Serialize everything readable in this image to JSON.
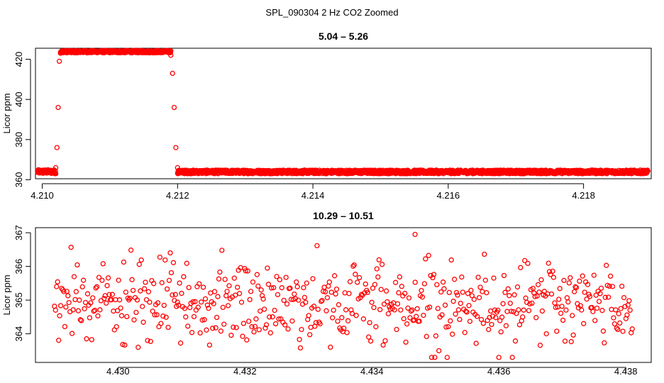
{
  "figure_title": "SPL_090304  2 Hz CO2 Zoomed",
  "chart_data": [
    {
      "type": "scatter",
      "title": "5.04 – 5.26",
      "xlabel": "",
      "ylabel": "Licor ppm",
      "xlim": [
        4.2099,
        4.219
      ],
      "ylim": [
        360.5,
        425.5
      ],
      "xticks": [
        4.21,
        4.212,
        4.214,
        4.216,
        4.218
      ],
      "xtick_labels": [
        "4.210",
        "4.212",
        "4.214",
        "4.216",
        "4.218"
      ],
      "yticks": [
        360,
        380,
        400,
        420
      ],
      "ytick_labels": [
        "360",
        "380",
        "400",
        "420"
      ],
      "marker_color": "#ff0000",
      "marker": "open-circle",
      "grid": false,
      "legend": "none",
      "segments": [
        {
          "x_start": 4.20993,
          "x_end": 4.2102,
          "y_center": 364.0,
          "y_jitter": 1.0
        },
        {
          "x_start": 4.2102,
          "x_end": 4.21027,
          "values": [
            366,
            376,
            396,
            419,
            423
          ]
        },
        {
          "x_start": 4.21027,
          "x_end": 4.2119,
          "y_center": 423.8,
          "y_jitter": 0.6
        },
        {
          "x_start": 4.2119,
          "x_end": 4.212,
          "values": [
            422,
            413,
            396,
            376,
            366
          ]
        },
        {
          "x_start": 4.212,
          "x_end": 4.21895,
          "y_center": 363.9,
          "y_jitter": 0.9
        }
      ]
    },
    {
      "type": "scatter",
      "title": "10.29 – 10.51",
      "xlabel": "",
      "ylabel": "Licor ppm",
      "xlim": [
        4.4287,
        4.4384
      ],
      "ylim": [
        363.15,
        367.15
      ],
      "xticks": [
        4.43,
        4.432,
        4.434,
        4.436,
        4.438
      ],
      "xtick_labels": [
        "4.430",
        "4.432",
        "4.434",
        "4.436",
        "4.438"
      ],
      "yticks": [
        364,
        365,
        366,
        367
      ],
      "ytick_labels": [
        "364",
        "365",
        "366",
        "367"
      ],
      "marker_color": "#ff0000",
      "marker": "open-circle",
      "grid": false,
      "legend": "none",
      "x_range_points": [
        4.429,
        4.4381
      ],
      "y_center": 364.9,
      "y_spread": 0.62,
      "y_min_seen": 363.3,
      "y_max_seen": 367.0
    }
  ]
}
